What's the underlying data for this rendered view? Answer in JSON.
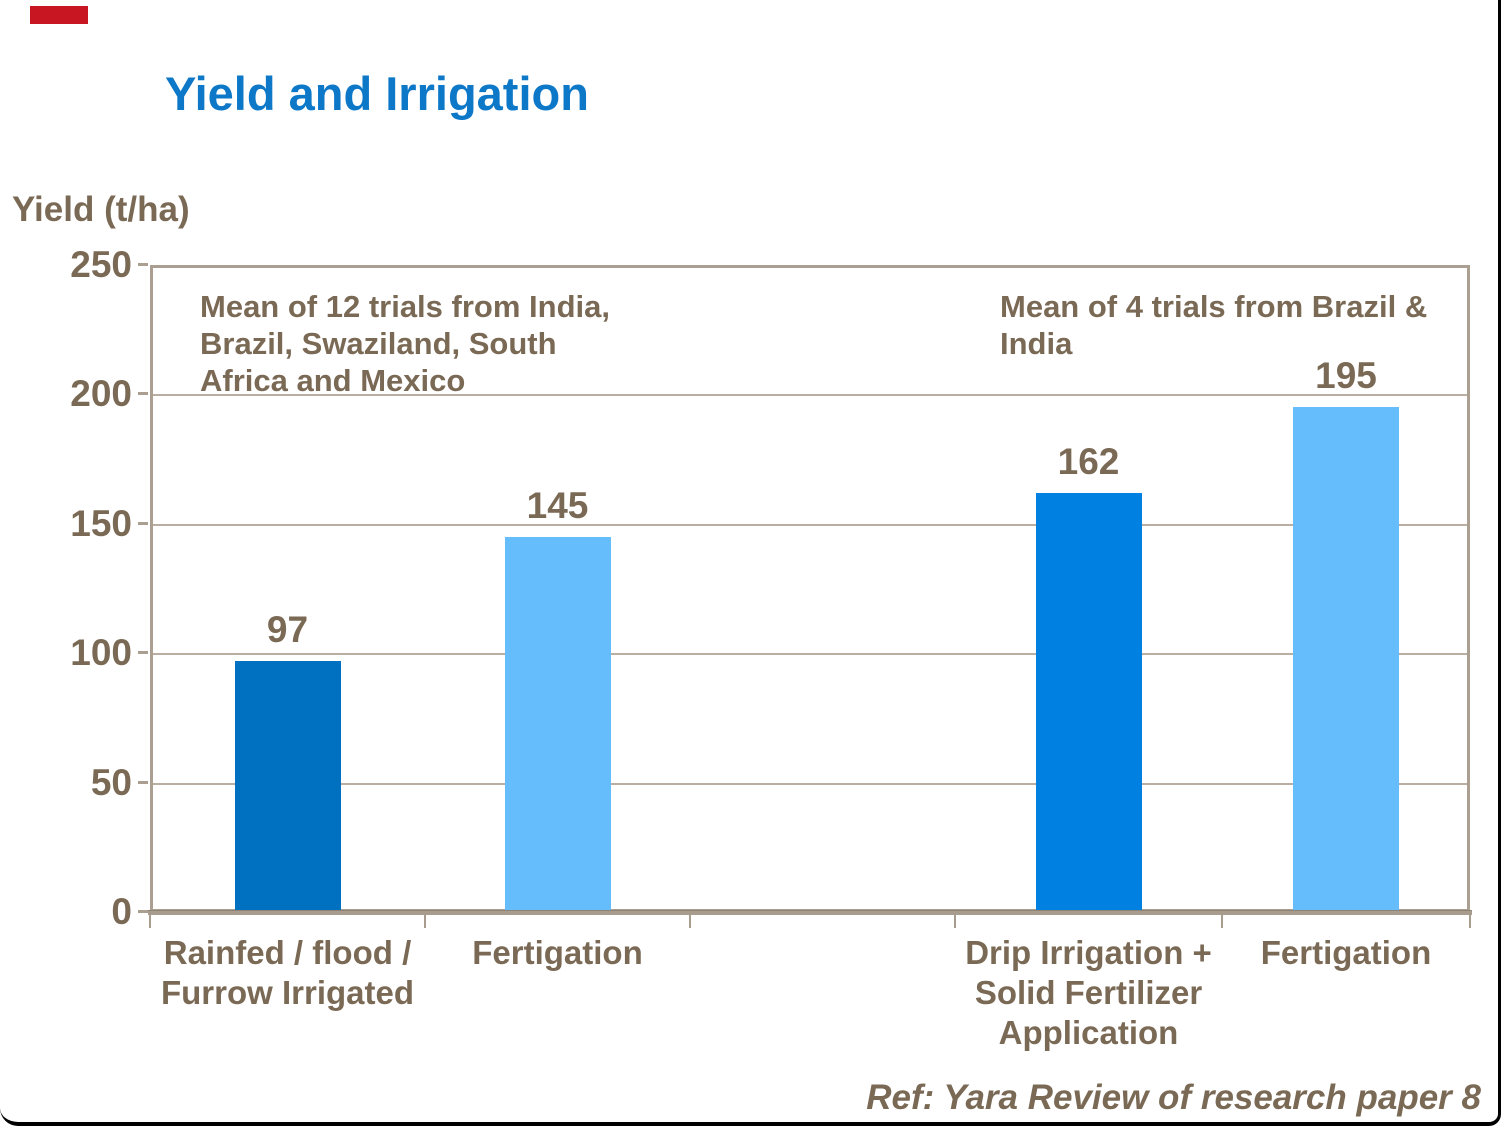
{
  "colors": {
    "title_blue": "#0E78C8",
    "text_brown": "#7A6A55",
    "bar_dark_blue": "#0070C0",
    "bar_light_blue": "#66BDFB",
    "bar_medium_blue": "#0081E2",
    "grid_tan": "#ab9f91",
    "red_flag": "#C81623"
  },
  "chart_data": {
    "type": "bar",
    "title": "Yield and Irrigation",
    "ylabel": "Yield (t/ha)",
    "xlabel": "",
    "ylim": [
      0,
      250
    ],
    "yticks": [
      0,
      50,
      100,
      150,
      200,
      250
    ],
    "grid": "horizontal gridlines at each y tick",
    "legend": "none",
    "categories": [
      "Rainfed / flood /\nFurrow Irrigated",
      "Fertigation",
      "",
      "Drip Irrigation +\nSolid Fertilizer\nApplication",
      "Fertigation"
    ],
    "values": [
      97,
      145,
      null,
      162,
      195
    ],
    "bar_color_keys": [
      "bar_dark_blue",
      "bar_light_blue",
      null,
      "bar_medium_blue",
      "bar_light_blue"
    ],
    "value_labels": [
      "97",
      "145",
      "",
      "162",
      "195"
    ],
    "annotations": [
      "Mean of 12 trials from India,\nBrazil, Swaziland, South\nAfrica and Mexico",
      "Mean of 4 trials from Brazil &\nIndia"
    ],
    "footnote": "Ref: Yara Review of research paper 8"
  }
}
